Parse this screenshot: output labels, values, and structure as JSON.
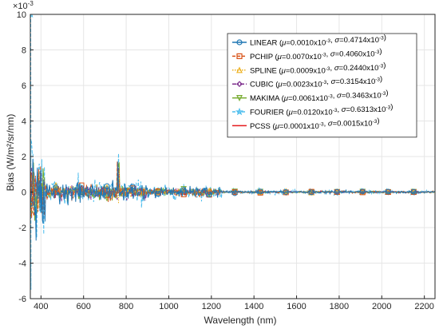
{
  "chart_data": {
    "type": "line",
    "title": "",
    "xlabel": "Wavelength (nm)",
    "ylabel": "Bias (W/m²/sr/nm)",
    "y_multiplier": "×10",
    "y_multiplier_exp": "-3",
    "xlim": [
      350,
      2250
    ],
    "ylim": [
      -6,
      10
    ],
    "x_ticks": [
      400,
      600,
      800,
      1000,
      1200,
      1400,
      1600,
      1800,
      2000,
      2200
    ],
    "y_ticks": [
      -6,
      -4,
      -2,
      0,
      2,
      4,
      6,
      8,
      10
    ],
    "grid": true,
    "legend_position": "top-right",
    "series": [
      {
        "name": "LINEAR",
        "mu": "0.0010",
        "sigma": "0.4714",
        "color": "#1f77b4",
        "marker": "circle",
        "line_style": "solid"
      },
      {
        "name": "PCHIP",
        "mu": "0.0070",
        "sigma": "0.4060",
        "color": "#d95319",
        "marker": "square",
        "line_style": "dashed"
      },
      {
        "name": "SPLINE",
        "mu": "0.0009",
        "sigma": "0.2440",
        "color": "#edb120",
        "marker": "triangle",
        "line_style": "dotted"
      },
      {
        "name": "CUBIC",
        "mu": "0.0023",
        "sigma": "0.3154",
        "color": "#7e2f8e",
        "marker": "diamond",
        "line_style": "dashdot"
      },
      {
        "name": "MAKIMA",
        "mu": "0.0061",
        "sigma": "0.3463",
        "color": "#77ac30",
        "marker": "triangle-down",
        "line_style": "solid"
      },
      {
        "name": "FOURIER",
        "mu": "0.0120",
        "sigma": "0.6313",
        "color": "#4dbeee",
        "marker": "star",
        "line_style": "dashed"
      },
      {
        "name": "PCSS",
        "mu": "0.0001",
        "sigma": "0.0015",
        "color": "#e41a1c",
        "marker": "none",
        "line_style": "solid"
      }
    ],
    "legend_mu_symbol": "μ",
    "legend_sigma_symbol": "σ",
    "legend_unit": "x10",
    "legend_unit_exp": "-3"
  }
}
